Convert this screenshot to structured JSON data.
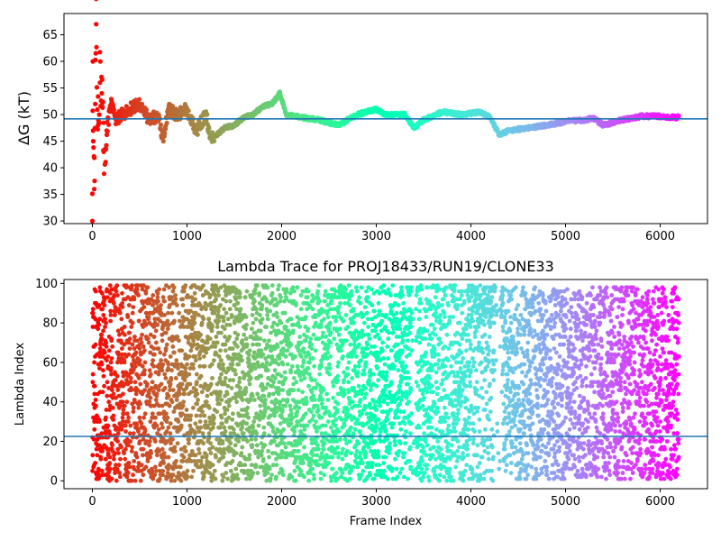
{
  "chart_data": [
    {
      "type": "scatter",
      "title": "",
      "xlabel": "",
      "ylabel": "ΔG (kT)",
      "xlim": [
        -300,
        6500
      ],
      "ylim": [
        29.5,
        69
      ],
      "xticks": [
        "0",
        "1000",
        "2000",
        "3000",
        "4000",
        "5000",
        "6000"
      ],
      "yticks": [
        "30",
        "35",
        "40",
        "45",
        "50",
        "55",
        "60",
        "65"
      ],
      "reference_line": {
        "y": 49.2,
        "color": "#1f77b4"
      },
      "colormap": "rainbow (early frames red, late frames violet)",
      "series": [
        {
          "x": [
            0,
            5,
            10,
            20,
            30,
            40,
            60,
            80,
            100,
            120,
            150,
            200,
            250,
            300,
            400,
            500,
            600,
            700,
            750,
            800,
            900,
            1000,
            1100,
            1200,
            1250,
            1300,
            1400,
            1500,
            1600,
            1700,
            1800,
            1900,
            1980,
            2050,
            2200,
            2400,
            2600,
            2800,
            3000,
            3100,
            3300,
            3400,
            3500,
            3700,
            3900,
            4100,
            4200,
            4300,
            4400,
            4600,
            4800,
            5000,
            5200,
            5300,
            5400,
            5600,
            5800,
            6000,
            6100,
            6180
          ],
          "y": [
            30,
            60,
            45,
            36,
            52,
            67,
            48,
            56,
            54,
            43,
            47,
            52,
            49,
            50,
            51,
            52,
            49,
            50,
            45,
            51,
            50,
            51,
            47,
            50,
            45.5,
            46,
            47.5,
            48,
            49.5,
            50,
            51.5,
            52,
            54,
            50,
            49.5,
            49,
            48,
            50,
            51,
            50,
            50,
            47.5,
            49,
            50.5,
            50,
            50.5,
            49.5,
            46.2,
            47,
            47.5,
            48,
            48.7,
            49,
            49.3,
            48,
            49,
            49.7,
            49.7,
            49.5,
            49.5
          ]
        }
      ]
    },
    {
      "type": "scatter",
      "title": "Lambda Trace for PROJ18433/RUN19/CLONE33",
      "xlabel": "Frame Index",
      "ylabel": "Lambda Index",
      "xlim": [
        -300,
        6500
      ],
      "ylim": [
        -4,
        102
      ],
      "xticks": [
        "0",
        "1000",
        "2000",
        "3000",
        "4000",
        "5000",
        "6000"
      ],
      "yticks": [
        "0",
        "20",
        "40",
        "60",
        "80",
        "100"
      ],
      "reference_line": {
        "y": 22.5,
        "color": "#1f77b4"
      },
      "colormap": "rainbow (early frames red, late frames violet)",
      "frame_count": 6200,
      "value_range": [
        0,
        99
      ],
      "description": "Approximately 6200 frames, each with a lambda index between 0 and 99; points densely scattered across full range"
    }
  ]
}
